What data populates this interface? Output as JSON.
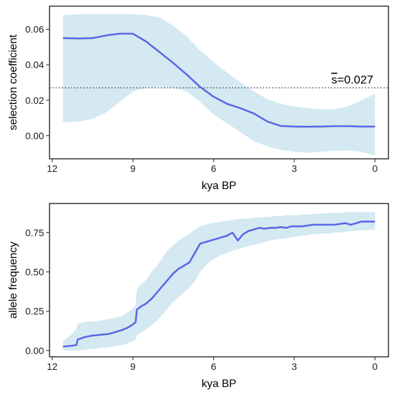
{
  "chart_data": [
    {
      "type": "line",
      "xlabel": "kya BP",
      "ylabel": "selection coefficient",
      "x_ticks": [
        12,
        9,
        6,
        3,
        0
      ],
      "y_ticks": [
        0.0,
        0.02,
        0.04,
        0.06
      ],
      "y_tick_labels": [
        "0.00",
        "0.02",
        "0.04",
        "0.06"
      ],
      "xlim": [
        12.1,
        -0.5
      ],
      "ylim": [
        -0.013,
        0.073
      ],
      "grid": false,
      "reference_line": {
        "y": 0.027,
        "style": "dotted",
        "label": "=0.027",
        "label_prefix": "s"
      },
      "band_color": "#d4e9f1",
      "line_color": "#5a67e6",
      "series": [
        {
          "x": [
            11.6,
            11.0,
            10.5,
            10.0,
            9.5,
            9.0,
            8.5,
            8.0,
            7.5,
            7.0,
            6.5,
            6.0,
            5.5,
            5.0,
            4.5,
            4.0,
            3.5,
            3.0,
            2.5,
            2.0,
            1.5,
            1.0,
            0.5,
            0.0
          ],
          "y": [
            0.055,
            0.0548,
            0.055,
            0.0565,
            0.0575,
            0.0575,
            0.053,
            0.047,
            0.041,
            0.0345,
            0.0275,
            0.022,
            0.018,
            0.0155,
            0.0125,
            0.008,
            0.0055,
            0.0052,
            0.0051,
            0.0052,
            0.0054,
            0.0054,
            0.0052,
            0.0052
          ],
          "lower": [
            0.0075,
            0.008,
            0.0095,
            0.013,
            0.019,
            0.025,
            0.027,
            0.0275,
            0.027,
            0.025,
            0.019,
            0.012,
            0.007,
            0.002,
            -0.003,
            -0.006,
            -0.008,
            -0.009,
            -0.0095,
            -0.009,
            -0.0085,
            -0.0083,
            -0.009,
            -0.011
          ],
          "upper": [
            0.068,
            0.0685,
            0.0685,
            0.0685,
            0.0685,
            0.0685,
            0.068,
            0.0665,
            0.062,
            0.056,
            0.048,
            0.0415,
            0.0355,
            0.03,
            0.025,
            0.0205,
            0.018,
            0.0165,
            0.0155,
            0.0148,
            0.015,
            0.0165,
            0.02,
            0.0235
          ]
        }
      ]
    },
    {
      "type": "line",
      "xlabel": "kya BP",
      "ylabel": "allele frequency",
      "x_ticks": [
        12,
        9,
        6,
        3,
        0
      ],
      "y_ticks": [
        0.0,
        0.25,
        0.5,
        0.75
      ],
      "y_tick_labels": [
        "0.00",
        "0.25",
        "0.50",
        "0.75"
      ],
      "xlim": [
        12.1,
        -0.5
      ],
      "ylim": [
        -0.04,
        0.935
      ],
      "grid": false,
      "band_color": "#d4e9f1",
      "line_color": "#5a67e6",
      "series": [
        {
          "x": [
            11.6,
            11.3,
            11.1,
            11.05,
            10.8,
            10.5,
            10.2,
            9.9,
            9.6,
            9.4,
            9.2,
            9.05,
            8.9,
            8.85,
            8.7,
            8.5,
            8.3,
            8.1,
            7.9,
            7.7,
            7.5,
            7.3,
            7.1,
            6.9,
            6.7,
            6.5,
            6.3,
            6.1,
            5.9,
            5.7,
            5.5,
            5.3,
            5.1,
            4.9,
            4.7,
            4.5,
            4.3,
            4.1,
            3.9,
            3.7,
            3.5,
            3.3,
            3.1,
            2.9,
            2.7,
            2.5,
            2.3,
            2.1,
            1.9,
            1.7,
            1.5,
            1.3,
            1.1,
            0.9,
            0.7,
            0.5,
            0.3,
            0.1,
            0.0
          ],
          "y": [
            0.025,
            0.03,
            0.035,
            0.07,
            0.085,
            0.095,
            0.1,
            0.105,
            0.12,
            0.13,
            0.145,
            0.16,
            0.18,
            0.26,
            0.28,
            0.3,
            0.33,
            0.37,
            0.41,
            0.45,
            0.49,
            0.52,
            0.54,
            0.56,
            0.62,
            0.68,
            0.69,
            0.7,
            0.71,
            0.72,
            0.73,
            0.75,
            0.7,
            0.74,
            0.76,
            0.77,
            0.78,
            0.775,
            0.78,
            0.78,
            0.785,
            0.78,
            0.79,
            0.79,
            0.79,
            0.795,
            0.8,
            0.8,
            0.8,
            0.8,
            0.8,
            0.805,
            0.81,
            0.8,
            0.81,
            0.82,
            0.82,
            0.82,
            0.82
          ],
          "lower": [
            0.0,
            0.0,
            0.0,
            0.0,
            0.005,
            0.01,
            0.015,
            0.02,
            0.03,
            0.035,
            0.045,
            0.055,
            0.07,
            0.1,
            0.115,
            0.135,
            0.16,
            0.19,
            0.23,
            0.27,
            0.31,
            0.34,
            0.37,
            0.4,
            0.44,
            0.5,
            0.54,
            0.57,
            0.59,
            0.61,
            0.62,
            0.635,
            0.645,
            0.655,
            0.665,
            0.67,
            0.68,
            0.69,
            0.7,
            0.705,
            0.71,
            0.715,
            0.72,
            0.725,
            0.73,
            0.735,
            0.74,
            0.74,
            0.745,
            0.745,
            0.75,
            0.75,
            0.755,
            0.76,
            0.76,
            0.765,
            0.765,
            0.77,
            0.77
          ],
          "upper": [
            0.06,
            0.1,
            0.14,
            0.17,
            0.18,
            0.185,
            0.19,
            0.2,
            0.21,
            0.22,
            0.24,
            0.26,
            0.29,
            0.39,
            0.42,
            0.45,
            0.5,
            0.54,
            0.59,
            0.64,
            0.67,
            0.7,
            0.72,
            0.74,
            0.77,
            0.79,
            0.8,
            0.81,
            0.815,
            0.82,
            0.825,
            0.83,
            0.835,
            0.84,
            0.84,
            0.845,
            0.845,
            0.85,
            0.85,
            0.855,
            0.855,
            0.86,
            0.86,
            0.86,
            0.865,
            0.865,
            0.87,
            0.87,
            0.87,
            0.875,
            0.875,
            0.875,
            0.88,
            0.88,
            0.88,
            0.88,
            0.88,
            0.88,
            0.88
          ]
        }
      ]
    }
  ]
}
